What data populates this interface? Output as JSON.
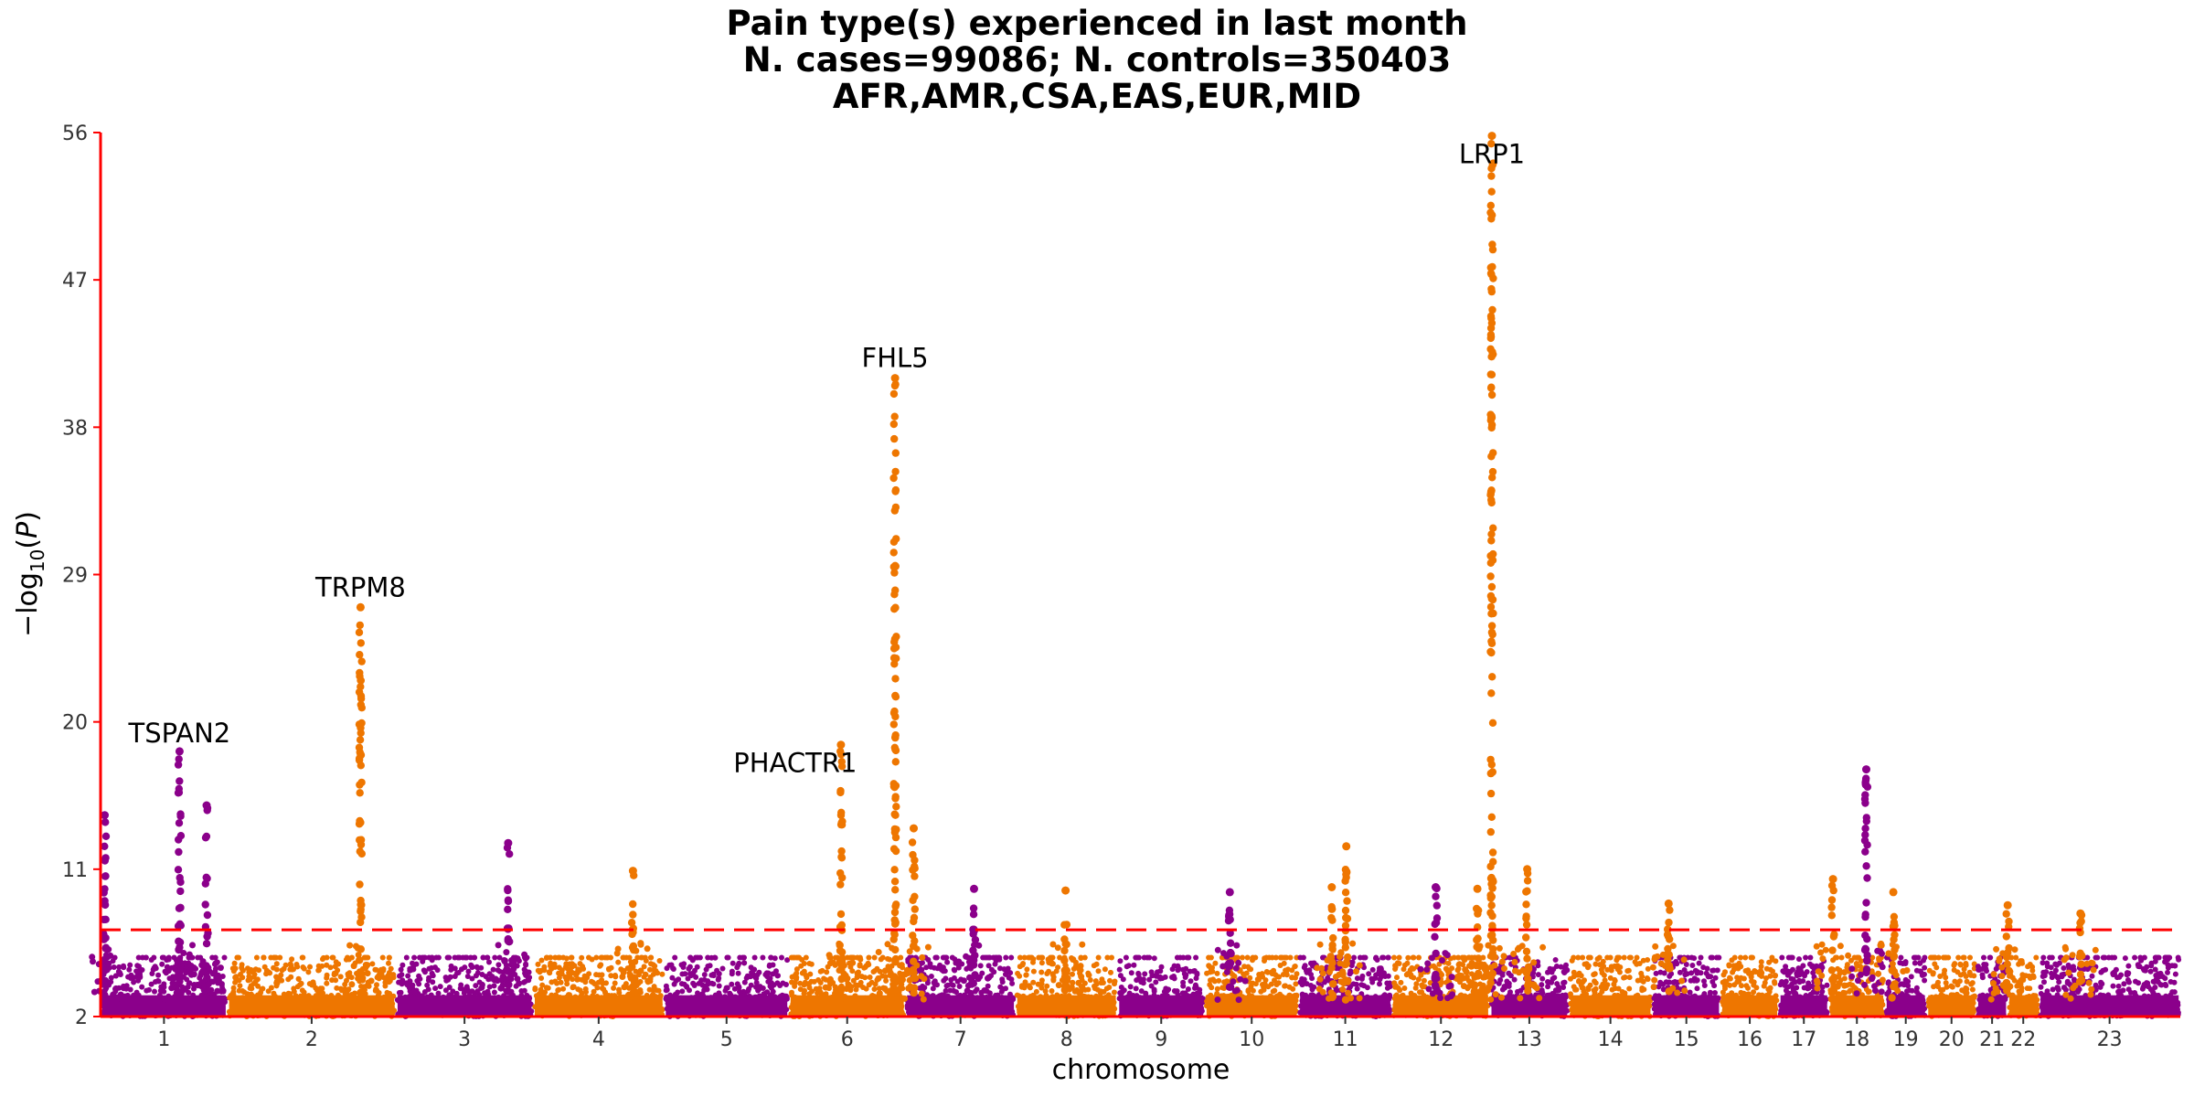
{
  "title": {
    "line1": "Pain type(s) experienced in last month",
    "line2": "N. cases=99086; N. controls=350403",
    "line3": "AFR,AMR,CSA,EAS,EUR,MID"
  },
  "colors": {
    "purple": "#8B008B",
    "orange": "#EE7600",
    "threshold": "#FF0000",
    "axis": "#FF0000",
    "tick_text": "#333333"
  },
  "chart_data": {
    "type": "scatter",
    "subtype": "manhattan",
    "xlabel": "chromosome",
    "ylabel": "−log10(P)",
    "ylim": [
      2,
      56
    ],
    "yticks": [
      2,
      11,
      20,
      29,
      38,
      47,
      56
    ],
    "genome_wide_threshold": 7.3,
    "grid": false,
    "legend": "none",
    "chromosomes": [
      {
        "label": "1",
        "start": 0.0,
        "end": 6.1,
        "color": "purple"
      },
      {
        "label": "2",
        "start": 6.1,
        "end": 14.2,
        "color": "orange"
      },
      {
        "label": "3",
        "start": 14.2,
        "end": 20.8,
        "color": "purple"
      },
      {
        "label": "4",
        "start": 20.8,
        "end": 27.1,
        "color": "orange"
      },
      {
        "label": "5",
        "start": 27.1,
        "end": 33.1,
        "color": "purple"
      },
      {
        "label": "6",
        "start": 33.1,
        "end": 38.7,
        "color": "orange"
      },
      {
        "label": "7",
        "start": 38.7,
        "end": 44.0,
        "color": "purple"
      },
      {
        "label": "8",
        "start": 44.0,
        "end": 48.9,
        "color": "orange"
      },
      {
        "label": "9",
        "start": 48.9,
        "end": 53.1,
        "color": "purple"
      },
      {
        "label": "10",
        "start": 53.1,
        "end": 57.6,
        "color": "orange"
      },
      {
        "label": "11",
        "start": 57.6,
        "end": 62.1,
        "color": "purple"
      },
      {
        "label": "12",
        "start": 62.1,
        "end": 66.8,
        "color": "orange"
      },
      {
        "label": "13",
        "start": 66.8,
        "end": 70.6,
        "color": "purple"
      },
      {
        "label": "14",
        "start": 70.6,
        "end": 74.6,
        "color": "orange"
      },
      {
        "label": "15",
        "start": 74.6,
        "end": 77.9,
        "color": "purple"
      },
      {
        "label": "16",
        "start": 77.9,
        "end": 80.7,
        "color": "orange"
      },
      {
        "label": "17",
        "start": 80.7,
        "end": 83.1,
        "color": "purple"
      },
      {
        "label": "18",
        "start": 83.1,
        "end": 85.8,
        "color": "orange"
      },
      {
        "label": "19",
        "start": 85.8,
        "end": 87.8,
        "color": "purple"
      },
      {
        "label": "20",
        "start": 87.8,
        "end": 90.2,
        "color": "orange"
      },
      {
        "label": "21",
        "start": 90.2,
        "end": 91.7,
        "color": "purple"
      },
      {
        "label": "22",
        "start": 91.7,
        "end": 93.2,
        "color": "orange"
      },
      {
        "label": "23",
        "start": 93.2,
        "end": 100.0,
        "color": "purple"
      }
    ],
    "peaks": [
      {
        "chrom": "1",
        "pos": 0.2,
        "top": 14.3
      },
      {
        "chrom": "1",
        "pos": 3.8,
        "top": 18.2,
        "label": "TSPAN2"
      },
      {
        "chrom": "1",
        "pos": 5.1,
        "top": 14.9
      },
      {
        "chrom": "2",
        "pos": 12.5,
        "top": 27.0,
        "label": "TRPM8"
      },
      {
        "chrom": "3",
        "pos": 19.6,
        "top": 12.6
      },
      {
        "chrom": "4",
        "pos": 25.6,
        "top": 10.9
      },
      {
        "chrom": "6",
        "pos": 35.6,
        "top": 18.6,
        "label": "PHACTR1"
      },
      {
        "chrom": "6",
        "pos": 38.2,
        "top": 41.0,
        "label": "FHL5"
      },
      {
        "chrom": "6",
        "pos": 39.1,
        "top": 13.5
      },
      {
        "chrom": "7",
        "pos": 42.0,
        "top": 9.8
      },
      {
        "chrom": "8",
        "pos": 46.4,
        "top": 9.7
      },
      {
        "chrom": "9",
        "pos": 54.3,
        "top": 9.6
      },
      {
        "chrom": "10",
        "pos": 59.2,
        "top": 9.9
      },
      {
        "chrom": "10",
        "pos": 59.9,
        "top": 12.4
      },
      {
        "chrom": "11",
        "pos": 64.2,
        "top": 9.9
      },
      {
        "chrom": "12",
        "pos": 66.2,
        "top": 9.8
      },
      {
        "chrom": "12",
        "pos": 66.9,
        "top": 55.8,
        "label": "LRP1"
      },
      {
        "chrom": "12",
        "pos": 68.6,
        "top": 11.0
      },
      {
        "chrom": "14",
        "pos": 75.4,
        "top": 8.9
      },
      {
        "chrom": "16",
        "pos": 83.3,
        "top": 10.4
      },
      {
        "chrom": "17",
        "pos": 84.9,
        "top": 17.1
      },
      {
        "chrom": "18",
        "pos": 86.2,
        "top": 9.6
      },
      {
        "chrom": "20",
        "pos": 91.7,
        "top": 8.8
      },
      {
        "chrom": "22",
        "pos": 95.2,
        "top": 8.3
      }
    ]
  }
}
